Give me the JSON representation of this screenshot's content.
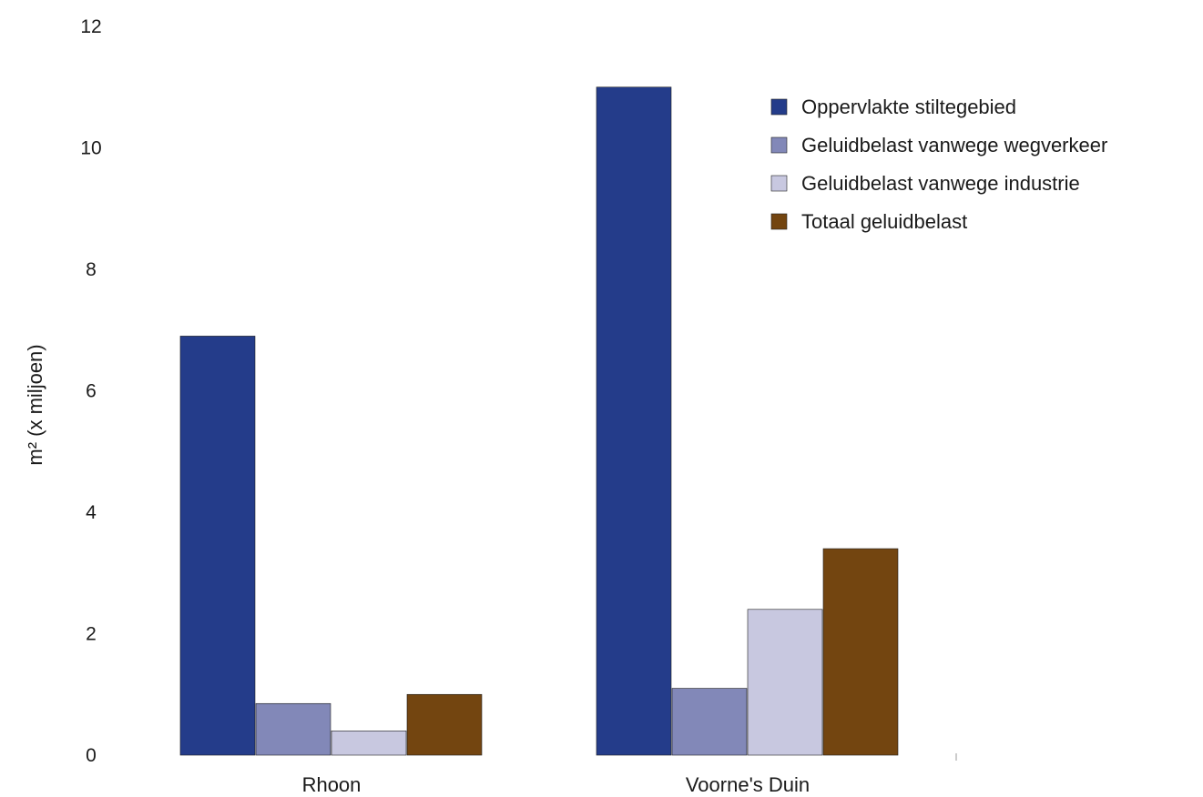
{
  "chart_data": {
    "type": "bar",
    "title": "",
    "xlabel": "",
    "ylabel": "m² (x miljoen)",
    "ylim": [
      0,
      12
    ],
    "yticks": [
      0,
      2,
      4,
      6,
      8,
      10,
      12
    ],
    "grid": false,
    "legend_position": "top-right",
    "categories": [
      "Rhoon",
      "Voorne's Duin"
    ],
    "series": [
      {
        "name": "Oppervlakte stiltegebied",
        "color": "#243c8a",
        "values": [
          6.9,
          11.0
        ]
      },
      {
        "name": "Geluidbelast vanwege wegverkeer",
        "color": "#8288b8",
        "values": [
          0.85,
          1.1
        ]
      },
      {
        "name": "Geluidbelast vanwege industrie",
        "color": "#c8c8e0",
        "values": [
          0.4,
          2.4
        ]
      },
      {
        "name": "Totaal geluidbelast",
        "color": "#734510",
        "values": [
          1.0,
          3.4
        ]
      }
    ]
  }
}
